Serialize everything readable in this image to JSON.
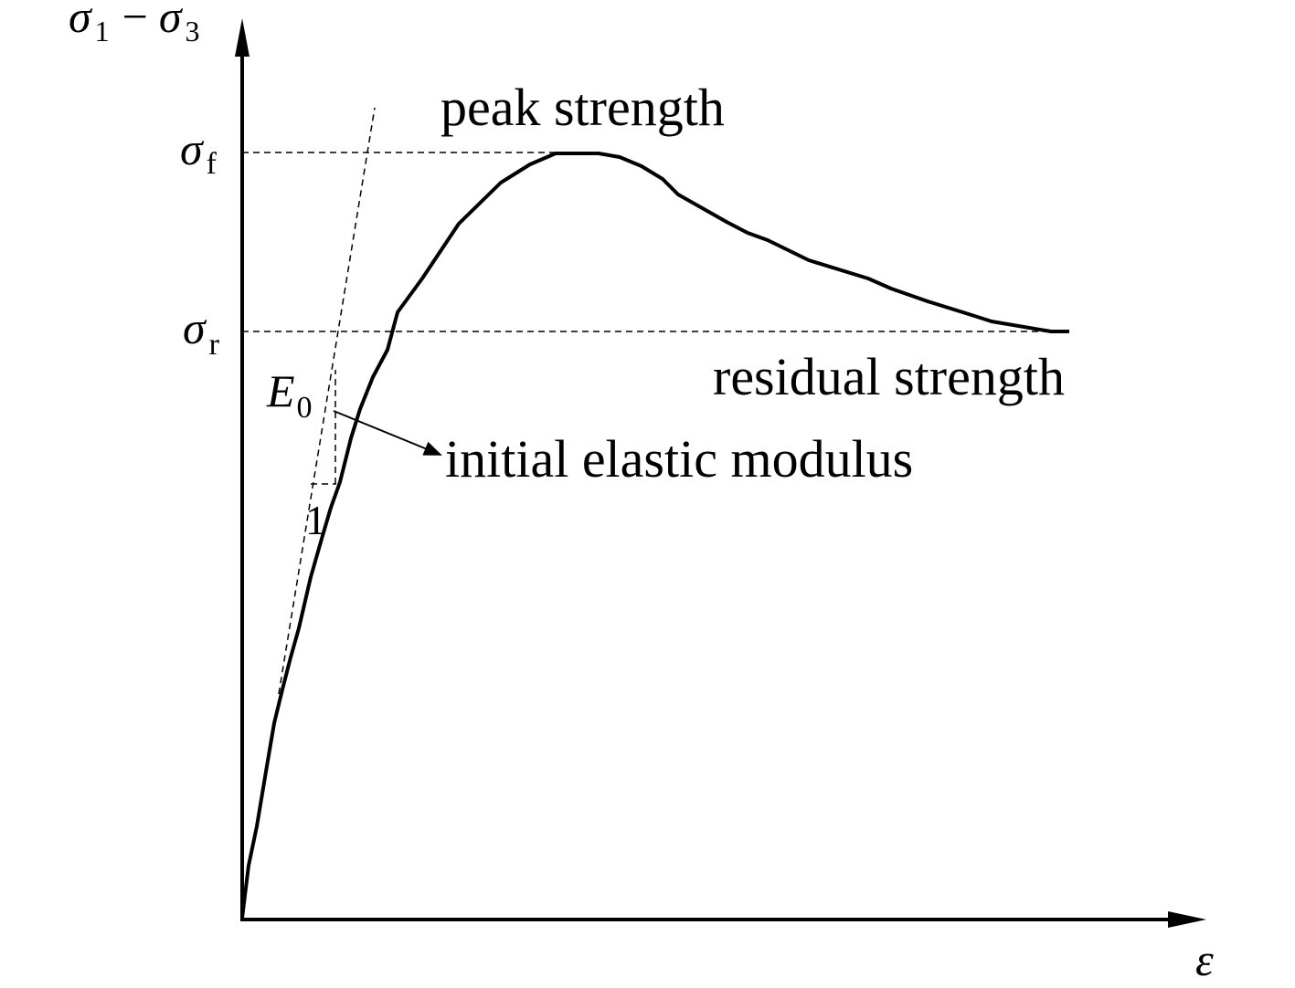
{
  "axes": {
    "y_label": [
      "σ",
      "1",
      "−",
      "σ",
      "3"
    ],
    "x_label": "ε"
  },
  "levels": [
    {
      "symbol": "σ",
      "subscript": "f",
      "label": "peak strength"
    },
    {
      "symbol": "σ",
      "subscript": "r",
      "label": "residual strength"
    }
  ],
  "modulus": {
    "symbol": "E",
    "subscript": "0",
    "slope_unit": "1",
    "label": "initial elastic modulus"
  }
}
